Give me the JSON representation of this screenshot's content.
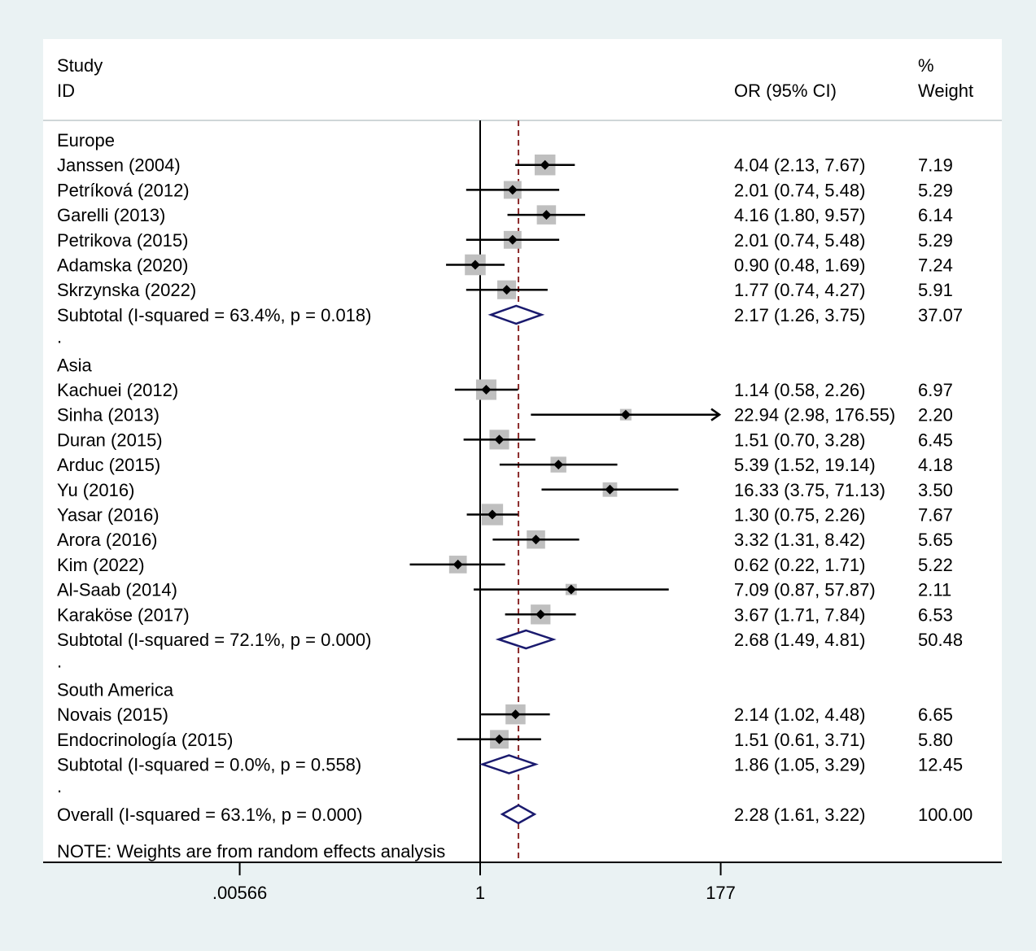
{
  "header": {
    "study_line1": "Study",
    "study_line2": "ID",
    "or_label": "OR (95% CI)",
    "weight_line1": "%",
    "weight_line2": "Weight"
  },
  "note": "NOTE: Weights are from random effects analysis",
  "separator": ".",
  "colors": {
    "background": "#eaf2f3",
    "panel": "#ffffff",
    "square": "#bfbfbf",
    "diamond": "#1a1a6e",
    "ref_line": "#8b2a2a"
  },
  "chart_data": {
    "type": "forest",
    "measure": "OR",
    "scale": "log",
    "x_ticks": [
      {
        "label": ".00566",
        "value": 0.00566
      },
      {
        "label": "1",
        "value": 1
      },
      {
        "label": "177",
        "value": 177
      }
    ],
    "null_line": 1,
    "overall_line": 2.28,
    "groups": [
      {
        "name": "Europe",
        "studies": [
          {
            "label": "Janssen (2004)",
            "or": 4.04,
            "lo": 2.13,
            "hi": 7.67,
            "weight": 7.19,
            "ci_text": "4.04 (2.13, 7.67)",
            "weight_text": "7.19"
          },
          {
            "label": "Petríková (2012)",
            "or": 2.01,
            "lo": 0.74,
            "hi": 5.48,
            "weight": 5.29,
            "ci_text": "2.01 (0.74, 5.48)",
            "weight_text": "5.29"
          },
          {
            "label": "Garelli  (2013)",
            "or": 4.16,
            "lo": 1.8,
            "hi": 9.57,
            "weight": 6.14,
            "ci_text": "4.16 (1.80, 9.57)",
            "weight_text": "6.14"
          },
          {
            "label": "Petrikova (2015)",
            "or": 2.01,
            "lo": 0.74,
            "hi": 5.48,
            "weight": 5.29,
            "ci_text": "2.01 (0.74, 5.48)",
            "weight_text": "5.29"
          },
          {
            "label": "Adamska (2020)",
            "or": 0.9,
            "lo": 0.48,
            "hi": 1.69,
            "weight": 7.24,
            "ci_text": "0.90 (0.48, 1.69)",
            "weight_text": "7.24"
          },
          {
            "label": "Skrzynska (2022)",
            "or": 1.77,
            "lo": 0.74,
            "hi": 4.27,
            "weight": 5.91,
            "ci_text": "1.77 (0.74, 4.27)",
            "weight_text": "5.91"
          }
        ],
        "subtotal": {
          "label": "Subtotal  (I-squared = 63.4%, p = 0.018)",
          "or": 2.17,
          "lo": 1.26,
          "hi": 3.75,
          "ci_text": "2.17 (1.26, 3.75)",
          "weight_text": "37.07"
        }
      },
      {
        "name": "Asia",
        "studies": [
          {
            "label": "Kachuei (2012)",
            "or": 1.14,
            "lo": 0.58,
            "hi": 2.26,
            "weight": 6.97,
            "ci_text": "1.14 (0.58, 2.26)",
            "weight_text": "6.97"
          },
          {
            "label": "Sinha (2013)",
            "or": 22.94,
            "lo": 2.98,
            "hi": 176.55,
            "weight": 2.2,
            "ci_text": "22.94 (2.98, 176.55)",
            "weight_text": "2.20",
            "arrow": true
          },
          {
            "label": "Duran (2015)",
            "or": 1.51,
            "lo": 0.7,
            "hi": 3.28,
            "weight": 6.45,
            "ci_text": "1.51 (0.70, 3.28)",
            "weight_text": "6.45"
          },
          {
            "label": "Arduc (2015)",
            "or": 5.39,
            "lo": 1.52,
            "hi": 19.14,
            "weight": 4.18,
            "ci_text": "5.39 (1.52, 19.14)",
            "weight_text": "4.18"
          },
          {
            "label": "Yu (2016)",
            "or": 16.33,
            "lo": 3.75,
            "hi": 71.13,
            "weight": 3.5,
            "ci_text": "16.33 (3.75, 71.13)",
            "weight_text": "3.50"
          },
          {
            "label": "Yasar (2016)",
            "or": 1.3,
            "lo": 0.75,
            "hi": 2.26,
            "weight": 7.67,
            "ci_text": "1.30 (0.75, 2.26)",
            "weight_text": "7.67"
          },
          {
            "label": "Arora (2016)",
            "or": 3.32,
            "lo": 1.31,
            "hi": 8.42,
            "weight": 5.65,
            "ci_text": "3.32 (1.31, 8.42)",
            "weight_text": "5.65"
          },
          {
            "label": "Kim (2022)",
            "or": 0.62,
            "lo": 0.22,
            "hi": 1.71,
            "weight": 5.22,
            "ci_text": "0.62 (0.22, 1.71)",
            "weight_text": "5.22"
          },
          {
            "label": "Al-Saab  (2014)",
            "or": 7.09,
            "lo": 0.87,
            "hi": 57.87,
            "weight": 2.11,
            "ci_text": "7.09 (0.87, 57.87)",
            "weight_text": "2.11"
          },
          {
            "label": "Karaköse (2017)",
            "or": 3.67,
            "lo": 1.71,
            "hi": 7.84,
            "weight": 6.53,
            "ci_text": "3.67 (1.71, 7.84)",
            "weight_text": "6.53"
          }
        ],
        "subtotal": {
          "label": "Subtotal  (I-squared = 72.1%, p = 0.000)",
          "or": 2.68,
          "lo": 1.49,
          "hi": 4.81,
          "ci_text": "2.68 (1.49, 4.81)",
          "weight_text": "50.48"
        }
      },
      {
        "name": "South America",
        "studies": [
          {
            "label": "Novais (2015)",
            "or": 2.14,
            "lo": 1.02,
            "hi": 4.48,
            "weight": 6.65,
            "ci_text": "2.14 (1.02, 4.48)",
            "weight_text": "6.65"
          },
          {
            "label": "Endocrinología (2015)",
            "or": 1.51,
            "lo": 0.61,
            "hi": 3.71,
            "weight": 5.8,
            "ci_text": "1.51 (0.61, 3.71)",
            "weight_text": "5.80"
          }
        ],
        "subtotal": {
          "label": "Subtotal  (I-squared = 0.0%, p = 0.558)",
          "or": 1.86,
          "lo": 1.05,
          "hi": 3.29,
          "ci_text": "1.86 (1.05, 3.29)",
          "weight_text": "12.45"
        }
      }
    ],
    "overall": {
      "label": "Overall  (I-squared = 63.1%, p = 0.000)",
      "or": 2.28,
      "lo": 1.61,
      "hi": 3.22,
      "ci_text": "2.28 (1.61, 3.22)",
      "weight_text": "100.00"
    }
  }
}
